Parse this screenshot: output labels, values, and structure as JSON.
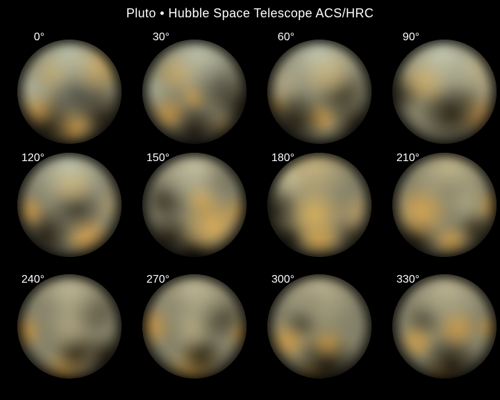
{
  "title": "Pluto • Hubble Space Telescope ACS/HRC",
  "background_color": "#000000",
  "text_color": "#ffffff",
  "globe_style": {
    "base_color": "#85826a"
  },
  "globes": [
    {
      "angle_label": "0°",
      "blobs": [
        [
          50,
          14,
          45,
          "#bcc0a8"
        ],
        [
          74,
          26,
          26,
          "#cc9c44"
        ],
        [
          36,
          32,
          20,
          "#c09a4e"
        ],
        [
          16,
          46,
          24,
          "#aeb29a"
        ],
        [
          58,
          50,
          34,
          "#46443a"
        ],
        [
          20,
          64,
          20,
          "#c49142"
        ],
        [
          30,
          80,
          26,
          "#282112"
        ],
        [
          53,
          84,
          22,
          "#cf9c45"
        ],
        [
          78,
          73,
          24,
          "#2c2517"
        ]
      ]
    },
    {
      "angle_label": "30°",
      "blobs": [
        [
          54,
          14,
          44,
          "#bdc1aa"
        ],
        [
          36,
          33,
          22,
          "#c89846"
        ],
        [
          14,
          47,
          20,
          "#a8ac94"
        ],
        [
          72,
          44,
          28,
          "#403d30"
        ],
        [
          50,
          54,
          18,
          "#c79845"
        ],
        [
          27,
          69,
          18,
          "#bd8e40"
        ],
        [
          50,
          85,
          28,
          "#1d1810"
        ],
        [
          88,
          62,
          20,
          "#2e2a1c"
        ],
        [
          74,
          81,
          16,
          "#8a7348"
        ]
      ]
    },
    {
      "angle_label": "60°",
      "blobs": [
        [
          50,
          14,
          44,
          "#c2c6b0"
        ],
        [
          56,
          31,
          28,
          "#c89c48"
        ],
        [
          18,
          42,
          20,
          "#b0a583"
        ],
        [
          70,
          53,
          28,
          "#45412f"
        ],
        [
          28,
          76,
          26,
          "#241e11"
        ],
        [
          52,
          73,
          18,
          "#cc9a45"
        ],
        [
          82,
          78,
          20,
          "#342c1a"
        ],
        [
          12,
          62,
          14,
          "#ad8a46"
        ]
      ]
    },
    {
      "angle_label": "90°",
      "blobs": [
        [
          48,
          15,
          45,
          "#c5c9b1"
        ],
        [
          78,
          30,
          22,
          "#b7a87d"
        ],
        [
          34,
          39,
          26,
          "#cc9e4a"
        ],
        [
          12,
          52,
          18,
          "#3a3526"
        ],
        [
          56,
          69,
          32,
          "#2a2415"
        ],
        [
          81,
          72,
          20,
          "#c19048"
        ],
        [
          89,
          45,
          16,
          "#aca686"
        ]
      ]
    },
    {
      "angle_label": "120°",
      "blobs": [
        [
          50,
          13,
          42,
          "#c1c5ad"
        ],
        [
          52,
          30,
          25,
          "#cc9c46"
        ],
        [
          15,
          56,
          16,
          "#c89544"
        ],
        [
          56,
          52,
          29,
          "#3c392b"
        ],
        [
          30,
          76,
          24,
          "#241e12"
        ],
        [
          66,
          79,
          22,
          "#d29e4a"
        ],
        [
          86,
          50,
          18,
          "#a2946e"
        ]
      ]
    },
    {
      "angle_label": "150°",
      "blobs": [
        [
          50,
          14,
          42,
          "#c6c1a2"
        ],
        [
          71,
          25,
          18,
          "#565240"
        ],
        [
          25,
          46,
          22,
          "#3a3527"
        ],
        [
          56,
          45,
          20,
          "#cc9e48"
        ],
        [
          66,
          68,
          31,
          "#d9ab56"
        ],
        [
          28,
          80,
          22,
          "#241e10"
        ],
        [
          50,
          94,
          20,
          "#191408"
        ],
        [
          90,
          56,
          14,
          "#b78d48"
        ]
      ]
    },
    {
      "angle_label": "180°",
      "blobs": [
        [
          45,
          14,
          40,
          "#c7b480"
        ],
        [
          66,
          29,
          20,
          "#7d7c66"
        ],
        [
          24,
          24,
          18,
          "#c8c39e"
        ],
        [
          12,
          55,
          20,
          "#322c1c"
        ],
        [
          46,
          58,
          32,
          "#dab25c"
        ],
        [
          50,
          82,
          22,
          "#cc9c46"
        ],
        [
          22,
          80,
          18,
          "#241d0e"
        ],
        [
          82,
          56,
          20,
          "#ae9562"
        ],
        [
          78,
          77,
          16,
          "#4a3e26"
        ]
      ]
    },
    {
      "angle_label": "210°",
      "blobs": [
        [
          55,
          13,
          40,
          "#c3b78d"
        ],
        [
          55,
          33,
          20,
          "#6e6d58"
        ],
        [
          30,
          56,
          30,
          "#d6a650"
        ],
        [
          69,
          48,
          22,
          "#a7a17c"
        ],
        [
          25,
          81,
          20,
          "#2a2212"
        ],
        [
          56,
          83,
          18,
          "#c99844"
        ],
        [
          92,
          51,
          16,
          "#c29041"
        ],
        [
          78,
          72,
          18,
          "#362c18"
        ]
      ]
    },
    {
      "angle_label": "240°",
      "blobs": [
        [
          50,
          14,
          42,
          "#beb593"
        ],
        [
          32,
          30,
          16,
          "#6a6754"
        ],
        [
          72,
          35,
          22,
          "#4e4936"
        ],
        [
          10,
          55,
          18,
          "#c59242"
        ],
        [
          50,
          52,
          28,
          "#a99d78"
        ],
        [
          56,
          73,
          22,
          "#352c18"
        ],
        [
          46,
          93,
          24,
          "#ca9844"
        ],
        [
          81,
          76,
          18,
          "#2e2614"
        ]
      ]
    },
    {
      "angle_label": "270°",
      "blobs": [
        [
          50,
          13,
          42,
          "#c0b795"
        ],
        [
          35,
          28,
          15,
          "#6e6b56"
        ],
        [
          73,
          42,
          23,
          "#46422f"
        ],
        [
          12,
          50,
          20,
          "#ca9846"
        ],
        [
          48,
          53,
          26,
          "#b0a47c"
        ],
        [
          56,
          76,
          22,
          "#2f2713"
        ],
        [
          48,
          93,
          25,
          "#d09e47"
        ],
        [
          92,
          56,
          14,
          "#be8c3e"
        ]
      ]
    },
    {
      "angle_label": "300°",
      "blobs": [
        [
          50,
          12,
          40,
          "#bdb391"
        ],
        [
          45,
          25,
          14,
          "#5e5a46"
        ],
        [
          35,
          46,
          18,
          "#4c4836"
        ],
        [
          57,
          46,
          25,
          "#8d896b"
        ],
        [
          22,
          63,
          20,
          "#cd9a46"
        ],
        [
          57,
          63,
          20,
          "#c59643"
        ],
        [
          56,
          84,
          29,
          "#1e180c"
        ],
        [
          46,
          96,
          18,
          "#c69641"
        ]
      ]
    },
    {
      "angle_label": "330°",
      "blobs": [
        [
          52,
          12,
          40,
          "#bfb593"
        ],
        [
          50,
          30,
          18,
          "#8a8668"
        ],
        [
          33,
          43,
          18,
          "#504c38"
        ],
        [
          61,
          51,
          25,
          "#ca9a46"
        ],
        [
          26,
          63,
          18,
          "#ce9e48"
        ],
        [
          56,
          83,
          27,
          "#211a0d"
        ],
        [
          50,
          96,
          18,
          "#c69641"
        ],
        [
          90,
          51,
          14,
          "#b68c42"
        ]
      ]
    }
  ]
}
